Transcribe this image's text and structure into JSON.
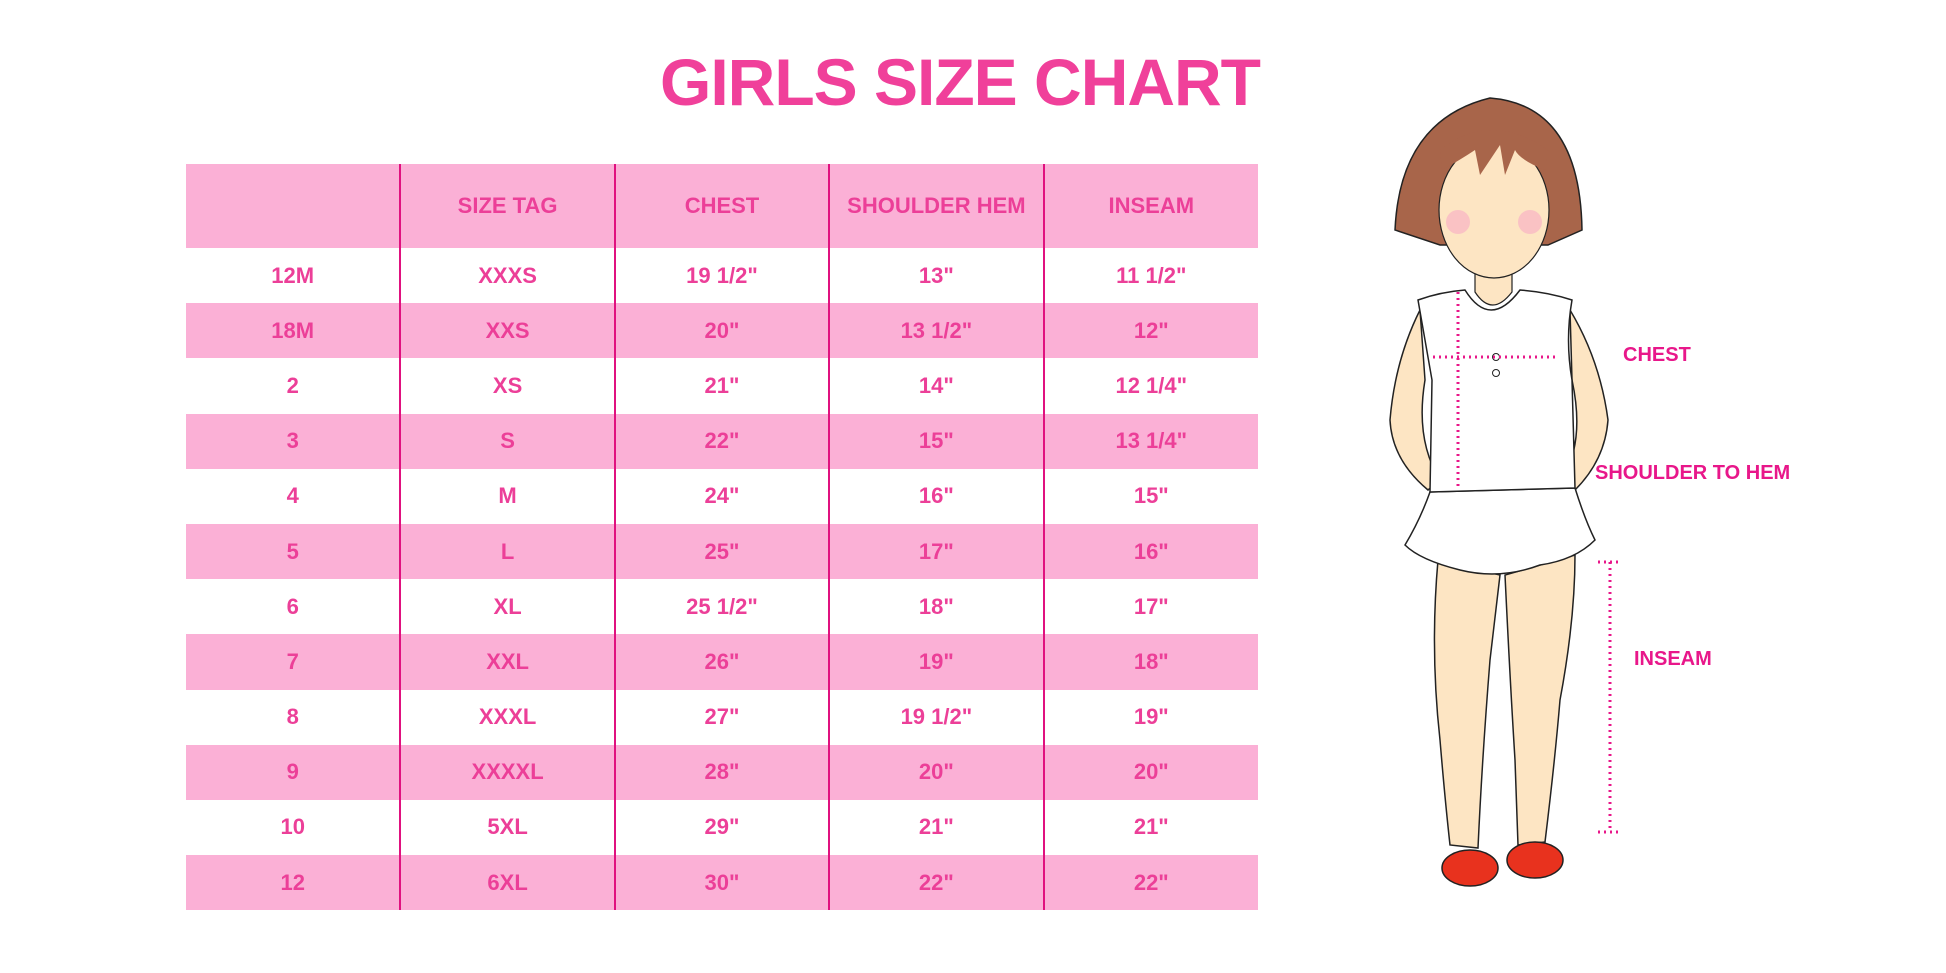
{
  "title": "GIRLS SIZE CHART",
  "colors": {
    "accent": "#ec3f98",
    "stripe": "#fbb0d6",
    "divider": "#e0117f"
  },
  "table": {
    "headers": [
      "",
      "SIZE TAG",
      "CHEST",
      "SHOULDER HEM",
      "INSEAM"
    ],
    "rows": [
      [
        "12M",
        "XXXS",
        "19 1/2\"",
        "13\"",
        "11 1/2\""
      ],
      [
        "18M",
        "XXS",
        "20\"",
        "13 1/2\"",
        "12\""
      ],
      [
        "2",
        "XS",
        "21\"",
        "14\"",
        "12 1/4\""
      ],
      [
        "3",
        "S",
        "22\"",
        "15\"",
        "13 1/4\""
      ],
      [
        "4",
        "M",
        "24\"",
        "16\"",
        "15\""
      ],
      [
        "5",
        "L",
        "25\"",
        "17\"",
        "16\""
      ],
      [
        "6",
        "XL",
        "25 1/2\"",
        "18\"",
        "17\""
      ],
      [
        "7",
        "XXL",
        "26\"",
        "19\"",
        "18\""
      ],
      [
        "8",
        "XXXL",
        "27\"",
        "19 1/2\"",
        "19\""
      ],
      [
        "9",
        "XXXXL",
        "28\"",
        "20\"",
        "20\""
      ],
      [
        "10",
        "5XL",
        "29\"",
        "21\"",
        "21\""
      ],
      [
        "12",
        "6XL",
        "30\"",
        "22\"",
        "22\""
      ]
    ]
  },
  "figure": {
    "labels": {
      "chest": "CHEST",
      "shoulder_to_hem": "SHOULDER TO HEM",
      "inseam": "INSEAM"
    }
  }
}
